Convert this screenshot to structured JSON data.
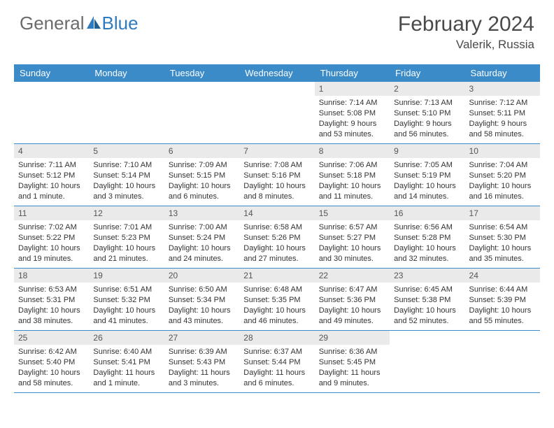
{
  "brand": {
    "part1": "General",
    "part2": "Blue"
  },
  "colors": {
    "header_bar": "#3b8bc9",
    "day_header_bg": "#eaeaea",
    "border": "#3b8bc9",
    "text": "#333333",
    "brand_gray": "#6b6b6b",
    "brand_blue": "#2f7bbf"
  },
  "title": "February 2024",
  "location": "Valerik, Russia",
  "weekdays": [
    "Sunday",
    "Monday",
    "Tuesday",
    "Wednesday",
    "Thursday",
    "Friday",
    "Saturday"
  ],
  "weeks": [
    [
      {
        "n": "",
        "sr": "",
        "ss": "",
        "dl": ""
      },
      {
        "n": "",
        "sr": "",
        "ss": "",
        "dl": ""
      },
      {
        "n": "",
        "sr": "",
        "ss": "",
        "dl": ""
      },
      {
        "n": "",
        "sr": "",
        "ss": "",
        "dl": ""
      },
      {
        "n": "1",
        "sr": "Sunrise: 7:14 AM",
        "ss": "Sunset: 5:08 PM",
        "dl": "Daylight: 9 hours and 53 minutes."
      },
      {
        "n": "2",
        "sr": "Sunrise: 7:13 AM",
        "ss": "Sunset: 5:10 PM",
        "dl": "Daylight: 9 hours and 56 minutes."
      },
      {
        "n": "3",
        "sr": "Sunrise: 7:12 AM",
        "ss": "Sunset: 5:11 PM",
        "dl": "Daylight: 9 hours and 58 minutes."
      }
    ],
    [
      {
        "n": "4",
        "sr": "Sunrise: 7:11 AM",
        "ss": "Sunset: 5:12 PM",
        "dl": "Daylight: 10 hours and 1 minute."
      },
      {
        "n": "5",
        "sr": "Sunrise: 7:10 AM",
        "ss": "Sunset: 5:14 PM",
        "dl": "Daylight: 10 hours and 3 minutes."
      },
      {
        "n": "6",
        "sr": "Sunrise: 7:09 AM",
        "ss": "Sunset: 5:15 PM",
        "dl": "Daylight: 10 hours and 6 minutes."
      },
      {
        "n": "7",
        "sr": "Sunrise: 7:08 AM",
        "ss": "Sunset: 5:16 PM",
        "dl": "Daylight: 10 hours and 8 minutes."
      },
      {
        "n": "8",
        "sr": "Sunrise: 7:06 AM",
        "ss": "Sunset: 5:18 PM",
        "dl": "Daylight: 10 hours and 11 minutes."
      },
      {
        "n": "9",
        "sr": "Sunrise: 7:05 AM",
        "ss": "Sunset: 5:19 PM",
        "dl": "Daylight: 10 hours and 14 minutes."
      },
      {
        "n": "10",
        "sr": "Sunrise: 7:04 AM",
        "ss": "Sunset: 5:20 PM",
        "dl": "Daylight: 10 hours and 16 minutes."
      }
    ],
    [
      {
        "n": "11",
        "sr": "Sunrise: 7:02 AM",
        "ss": "Sunset: 5:22 PM",
        "dl": "Daylight: 10 hours and 19 minutes."
      },
      {
        "n": "12",
        "sr": "Sunrise: 7:01 AM",
        "ss": "Sunset: 5:23 PM",
        "dl": "Daylight: 10 hours and 21 minutes."
      },
      {
        "n": "13",
        "sr": "Sunrise: 7:00 AM",
        "ss": "Sunset: 5:24 PM",
        "dl": "Daylight: 10 hours and 24 minutes."
      },
      {
        "n": "14",
        "sr": "Sunrise: 6:58 AM",
        "ss": "Sunset: 5:26 PM",
        "dl": "Daylight: 10 hours and 27 minutes."
      },
      {
        "n": "15",
        "sr": "Sunrise: 6:57 AM",
        "ss": "Sunset: 5:27 PM",
        "dl": "Daylight: 10 hours and 30 minutes."
      },
      {
        "n": "16",
        "sr": "Sunrise: 6:56 AM",
        "ss": "Sunset: 5:28 PM",
        "dl": "Daylight: 10 hours and 32 minutes."
      },
      {
        "n": "17",
        "sr": "Sunrise: 6:54 AM",
        "ss": "Sunset: 5:30 PM",
        "dl": "Daylight: 10 hours and 35 minutes."
      }
    ],
    [
      {
        "n": "18",
        "sr": "Sunrise: 6:53 AM",
        "ss": "Sunset: 5:31 PM",
        "dl": "Daylight: 10 hours and 38 minutes."
      },
      {
        "n": "19",
        "sr": "Sunrise: 6:51 AM",
        "ss": "Sunset: 5:32 PM",
        "dl": "Daylight: 10 hours and 41 minutes."
      },
      {
        "n": "20",
        "sr": "Sunrise: 6:50 AM",
        "ss": "Sunset: 5:34 PM",
        "dl": "Daylight: 10 hours and 43 minutes."
      },
      {
        "n": "21",
        "sr": "Sunrise: 6:48 AM",
        "ss": "Sunset: 5:35 PM",
        "dl": "Daylight: 10 hours and 46 minutes."
      },
      {
        "n": "22",
        "sr": "Sunrise: 6:47 AM",
        "ss": "Sunset: 5:36 PM",
        "dl": "Daylight: 10 hours and 49 minutes."
      },
      {
        "n": "23",
        "sr": "Sunrise: 6:45 AM",
        "ss": "Sunset: 5:38 PM",
        "dl": "Daylight: 10 hours and 52 minutes."
      },
      {
        "n": "24",
        "sr": "Sunrise: 6:44 AM",
        "ss": "Sunset: 5:39 PM",
        "dl": "Daylight: 10 hours and 55 minutes."
      }
    ],
    [
      {
        "n": "25",
        "sr": "Sunrise: 6:42 AM",
        "ss": "Sunset: 5:40 PM",
        "dl": "Daylight: 10 hours and 58 minutes."
      },
      {
        "n": "26",
        "sr": "Sunrise: 6:40 AM",
        "ss": "Sunset: 5:41 PM",
        "dl": "Daylight: 11 hours and 1 minute."
      },
      {
        "n": "27",
        "sr": "Sunrise: 6:39 AM",
        "ss": "Sunset: 5:43 PM",
        "dl": "Daylight: 11 hours and 3 minutes."
      },
      {
        "n": "28",
        "sr": "Sunrise: 6:37 AM",
        "ss": "Sunset: 5:44 PM",
        "dl": "Daylight: 11 hours and 6 minutes."
      },
      {
        "n": "29",
        "sr": "Sunrise: 6:36 AM",
        "ss": "Sunset: 5:45 PM",
        "dl": "Daylight: 11 hours and 9 minutes."
      },
      {
        "n": "",
        "sr": "",
        "ss": "",
        "dl": ""
      },
      {
        "n": "",
        "sr": "",
        "ss": "",
        "dl": ""
      }
    ]
  ]
}
